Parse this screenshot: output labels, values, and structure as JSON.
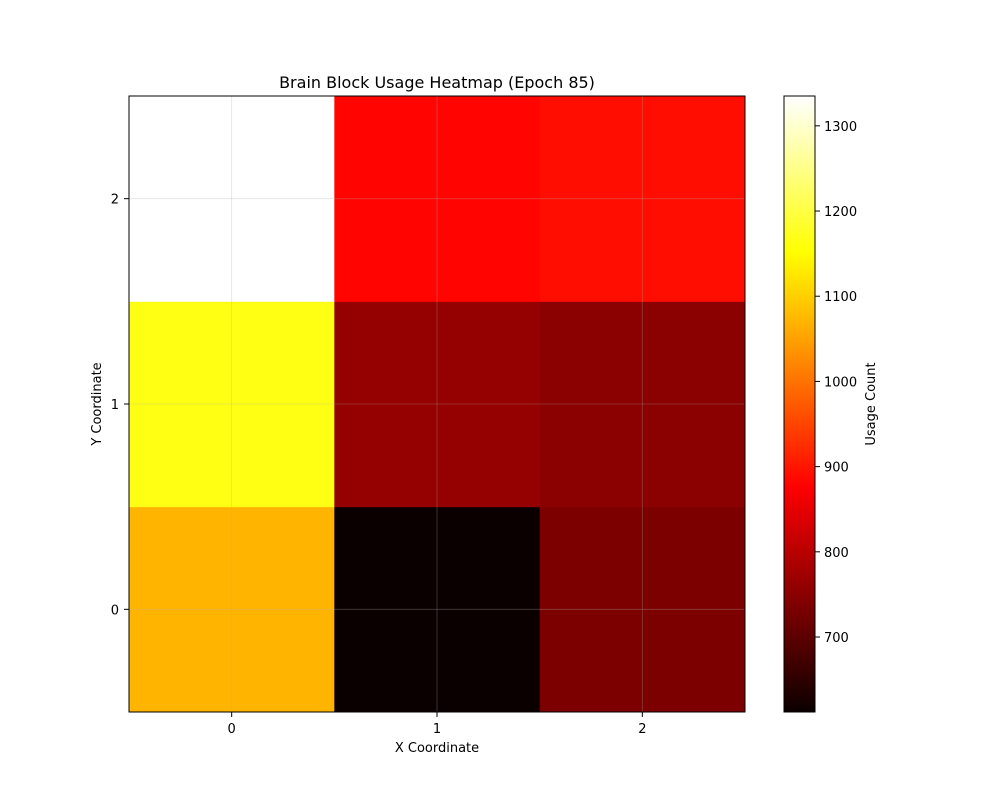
{
  "chart_data": {
    "type": "heatmap",
    "title": "Brain Block Usage Heatmap (Epoch 85)",
    "xlabel": "X Coordinate",
    "ylabel": "Y Coordinate",
    "x_categories": [
      "0",
      "1",
      "2"
    ],
    "y_categories": [
      "0",
      "1",
      "2"
    ],
    "values": [
      [
        1070,
        612,
        730
      ],
      [
        1165,
        755,
        745
      ],
      [
        1335,
        880,
        890
      ]
    ],
    "grid": true,
    "colormap": "hot",
    "colorbar": {
      "label": "Usage Count",
      "min": 612,
      "max": 1335,
      "ticks": [
        700,
        800,
        900,
        1000,
        1100,
        1200,
        1300
      ]
    }
  }
}
